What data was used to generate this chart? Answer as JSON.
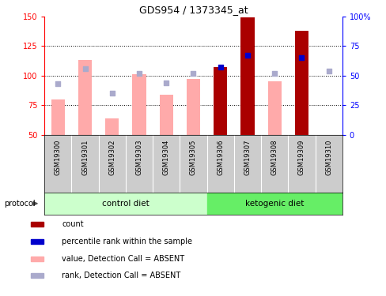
{
  "title": "GDS954 / 1373345_at",
  "samples": [
    "GSM19300",
    "GSM19301",
    "GSM19302",
    "GSM19303",
    "GSM19304",
    "GSM19305",
    "GSM19306",
    "GSM19307",
    "GSM19308",
    "GSM19309",
    "GSM19310"
  ],
  "groups": [
    "control diet",
    "control diet",
    "control diet",
    "control diet",
    "control diet",
    "control diet",
    "ketogenic diet",
    "ketogenic diet",
    "ketogenic diet",
    "ketogenic diet",
    "ketogenic diet"
  ],
  "value_absent": [
    80,
    113,
    64,
    101,
    84,
    97,
    null,
    null,
    95,
    null,
    null
  ],
  "rank_absent": [
    93,
    106,
    85,
    102,
    94,
    102,
    null,
    null,
    102,
    null,
    104
  ],
  "count_present": [
    null,
    null,
    null,
    null,
    null,
    null,
    107,
    149,
    null,
    138,
    null
  ],
  "pct_rank_present": [
    null,
    null,
    null,
    null,
    null,
    null,
    107,
    117,
    null,
    115,
    null
  ],
  "ylim_left": [
    50,
    150
  ],
  "ylim_right": [
    0,
    100
  ],
  "yticks_left": [
    50,
    75,
    100,
    125,
    150
  ],
  "yticks_right": [
    0,
    25,
    50,
    75,
    100
  ],
  "color_count": "#aa0000",
  "color_pct": "#0000cc",
  "color_value_absent": "#ffaaaa",
  "color_rank_absent": "#aaaacc",
  "color_ctrl": "#ccffcc",
  "color_keto": "#66ee66",
  "color_sample_bg": "#cccccc",
  "protocol_label": "protocol",
  "control_label": "control diet",
  "ketogenic_label": "ketogenic diet",
  "legend_items": [
    [
      "#aa0000",
      "count"
    ],
    [
      "#0000cc",
      "percentile rank within the sample"
    ],
    [
      "#ffaaaa",
      "value, Detection Call = ABSENT"
    ],
    [
      "#aaaacc",
      "rank, Detection Call = ABSENT"
    ]
  ],
  "n_control": 6,
  "n_keto": 5
}
